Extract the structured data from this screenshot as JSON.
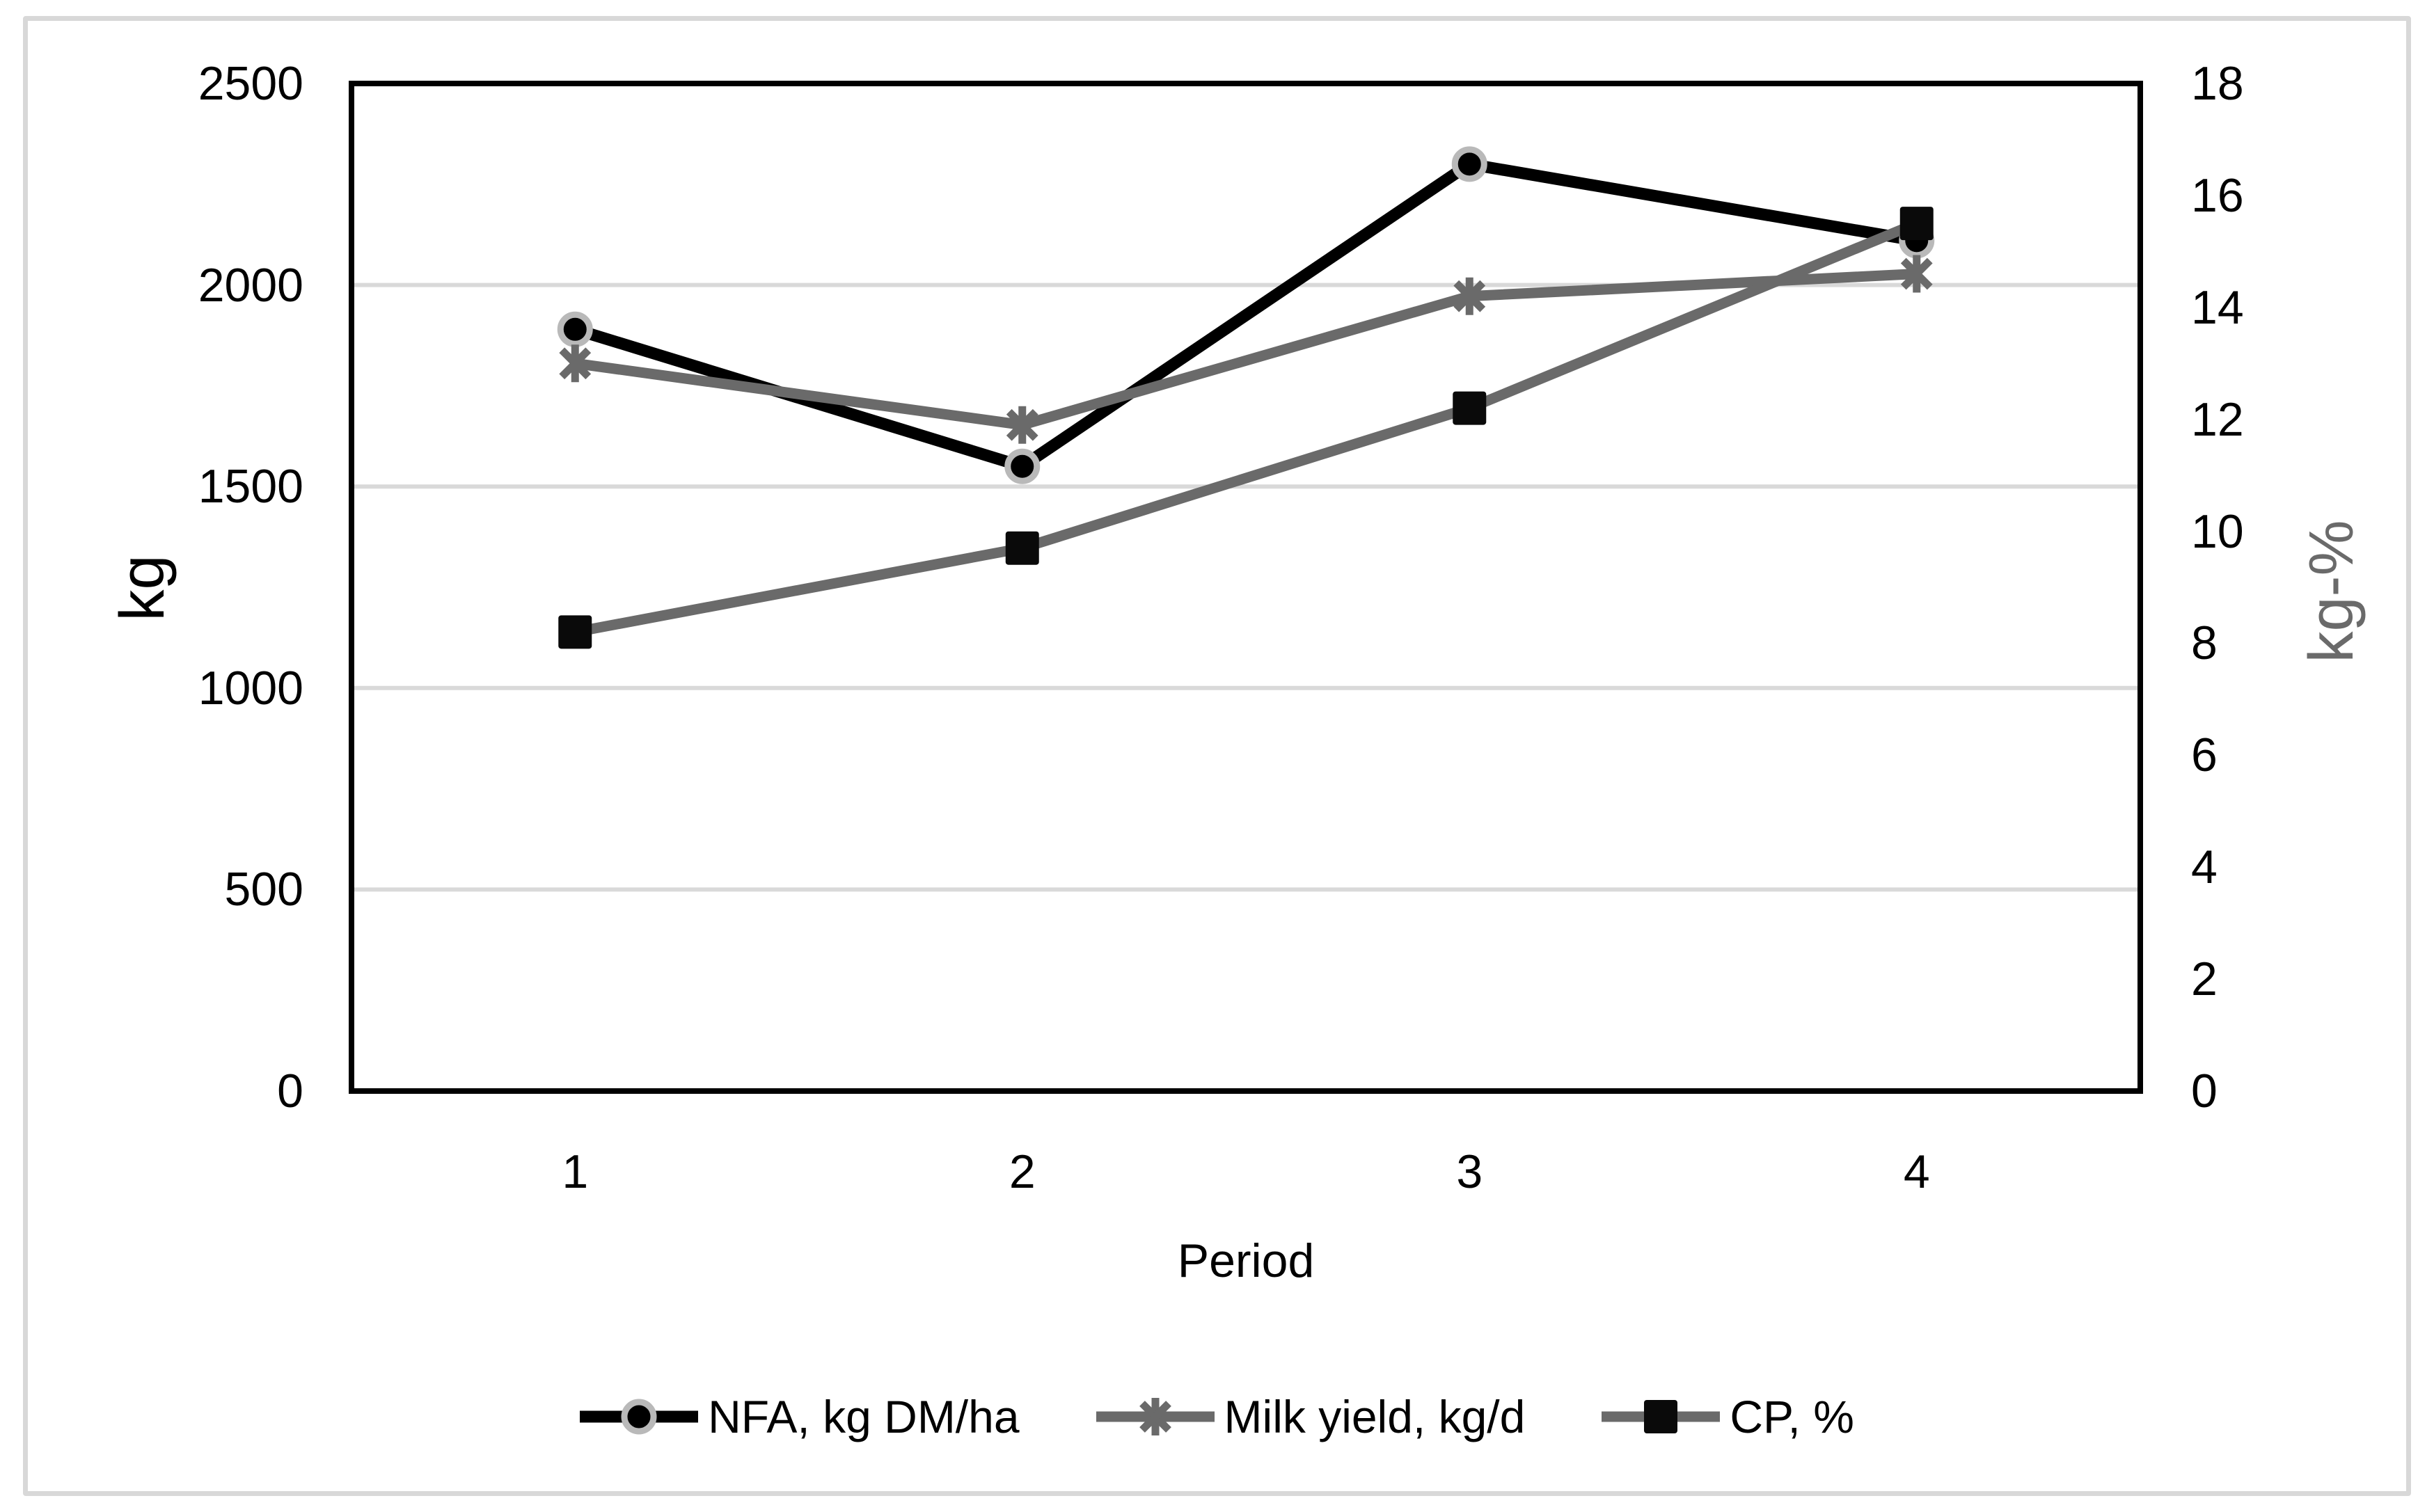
{
  "figure": {
    "background": "#ffffff",
    "outer_border_color": "#d8d8d8"
  },
  "chart_data": {
    "type": "line",
    "xlabel": "Period",
    "x_tick_labels": [
      "1",
      "2",
      "3",
      "4"
    ],
    "left_axis": {
      "title": "kg",
      "min": 0,
      "max": 2500,
      "step": 500,
      "tick_labels": [
        "0",
        "500",
        "1000",
        "1500",
        "2000",
        "2500"
      ],
      "title_color": "#000000"
    },
    "right_axis": {
      "title": "kg-%",
      "min": 0,
      "max": 18,
      "step": 2,
      "tick_labels": [
        "0",
        "2",
        "4",
        "6",
        "8",
        "10",
        "12",
        "14",
        "16",
        "18"
      ],
      "title_color": "#6a6a6a"
    },
    "grid": "horizontal-major",
    "legend_position": "bottom",
    "colors": {
      "gridline": "#d9d9d9",
      "axis_frame": "#000000",
      "series_black": "#000000",
      "series_gray": "#6a6a6a",
      "circle_ring": "#b9b9b9",
      "square_fill": "#0a0a0a"
    },
    "series": [
      {
        "name": "NFA, kg DM/ha",
        "axis": "left",
        "marker": "circle",
        "color": "#000000",
        "values": [
          1890,
          1550,
          2300,
          2110
        ]
      },
      {
        "name": "Milk yield, kg/d",
        "axis": "right",
        "marker": "asterisk",
        "color": "#6a6a6a",
        "values": [
          13.0,
          11.9,
          14.2,
          14.6
        ]
      },
      {
        "name": "CP, %",
        "axis": "right",
        "marker": "square",
        "color": "#6a6a6a",
        "values": [
          8.2,
          9.7,
          12.2,
          15.5
        ]
      }
    ]
  }
}
